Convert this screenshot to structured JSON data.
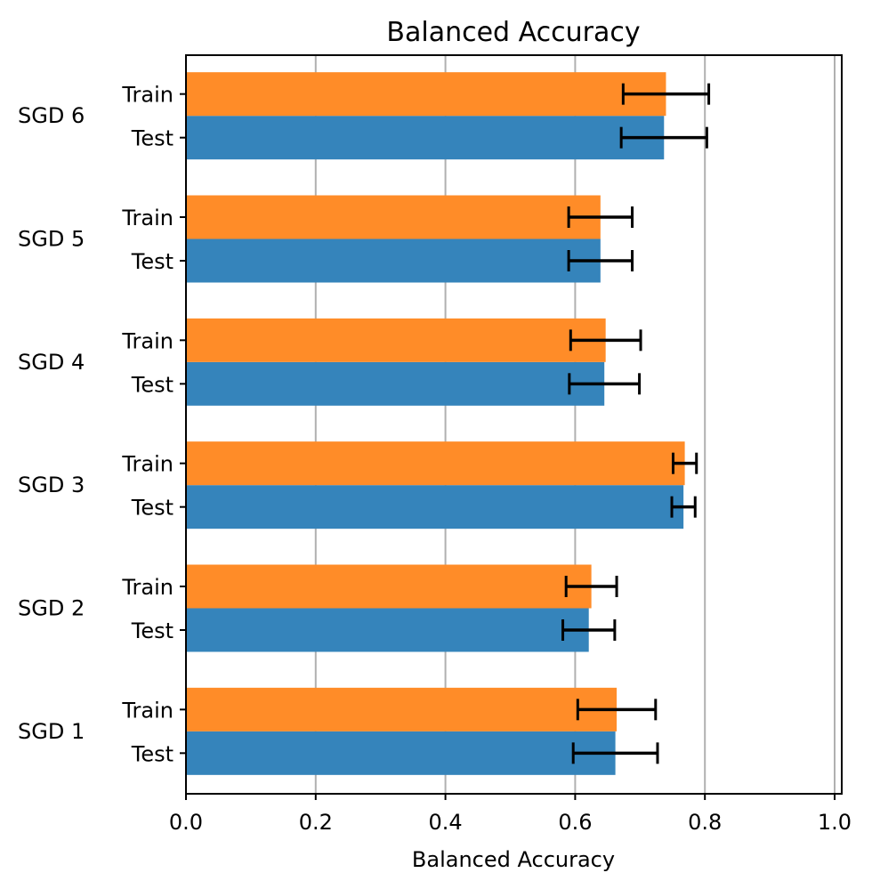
{
  "chart_data": {
    "type": "bar",
    "orientation": "horizontal",
    "title": "Balanced Accuracy",
    "xlabel": "Balanced Accuracy",
    "ylabel": "",
    "xlim": [
      0.0,
      1.0
    ],
    "xticks": [
      "0.0",
      "0.2",
      "0.4",
      "0.6",
      "0.8",
      "1.0"
    ],
    "grid": "vertical",
    "categories": [
      "SGD 1",
      "SGD 2",
      "SGD 3",
      "SGD 4",
      "SGD 5",
      "SGD 6"
    ],
    "series": [
      {
        "name": "Test",
        "color": "#3584bb",
        "values": [
          0.662,
          0.621,
          0.767,
          0.645,
          0.639,
          0.737
        ],
        "errors": [
          0.065,
          0.04,
          0.018,
          0.054,
          0.049,
          0.066
        ]
      },
      {
        "name": "Train",
        "color": "#ff8c28",
        "values": [
          0.664,
          0.625,
          0.769,
          0.647,
          0.639,
          0.74
        ],
        "errors": [
          0.06,
          0.039,
          0.018,
          0.054,
          0.049,
          0.066
        ]
      }
    ]
  }
}
